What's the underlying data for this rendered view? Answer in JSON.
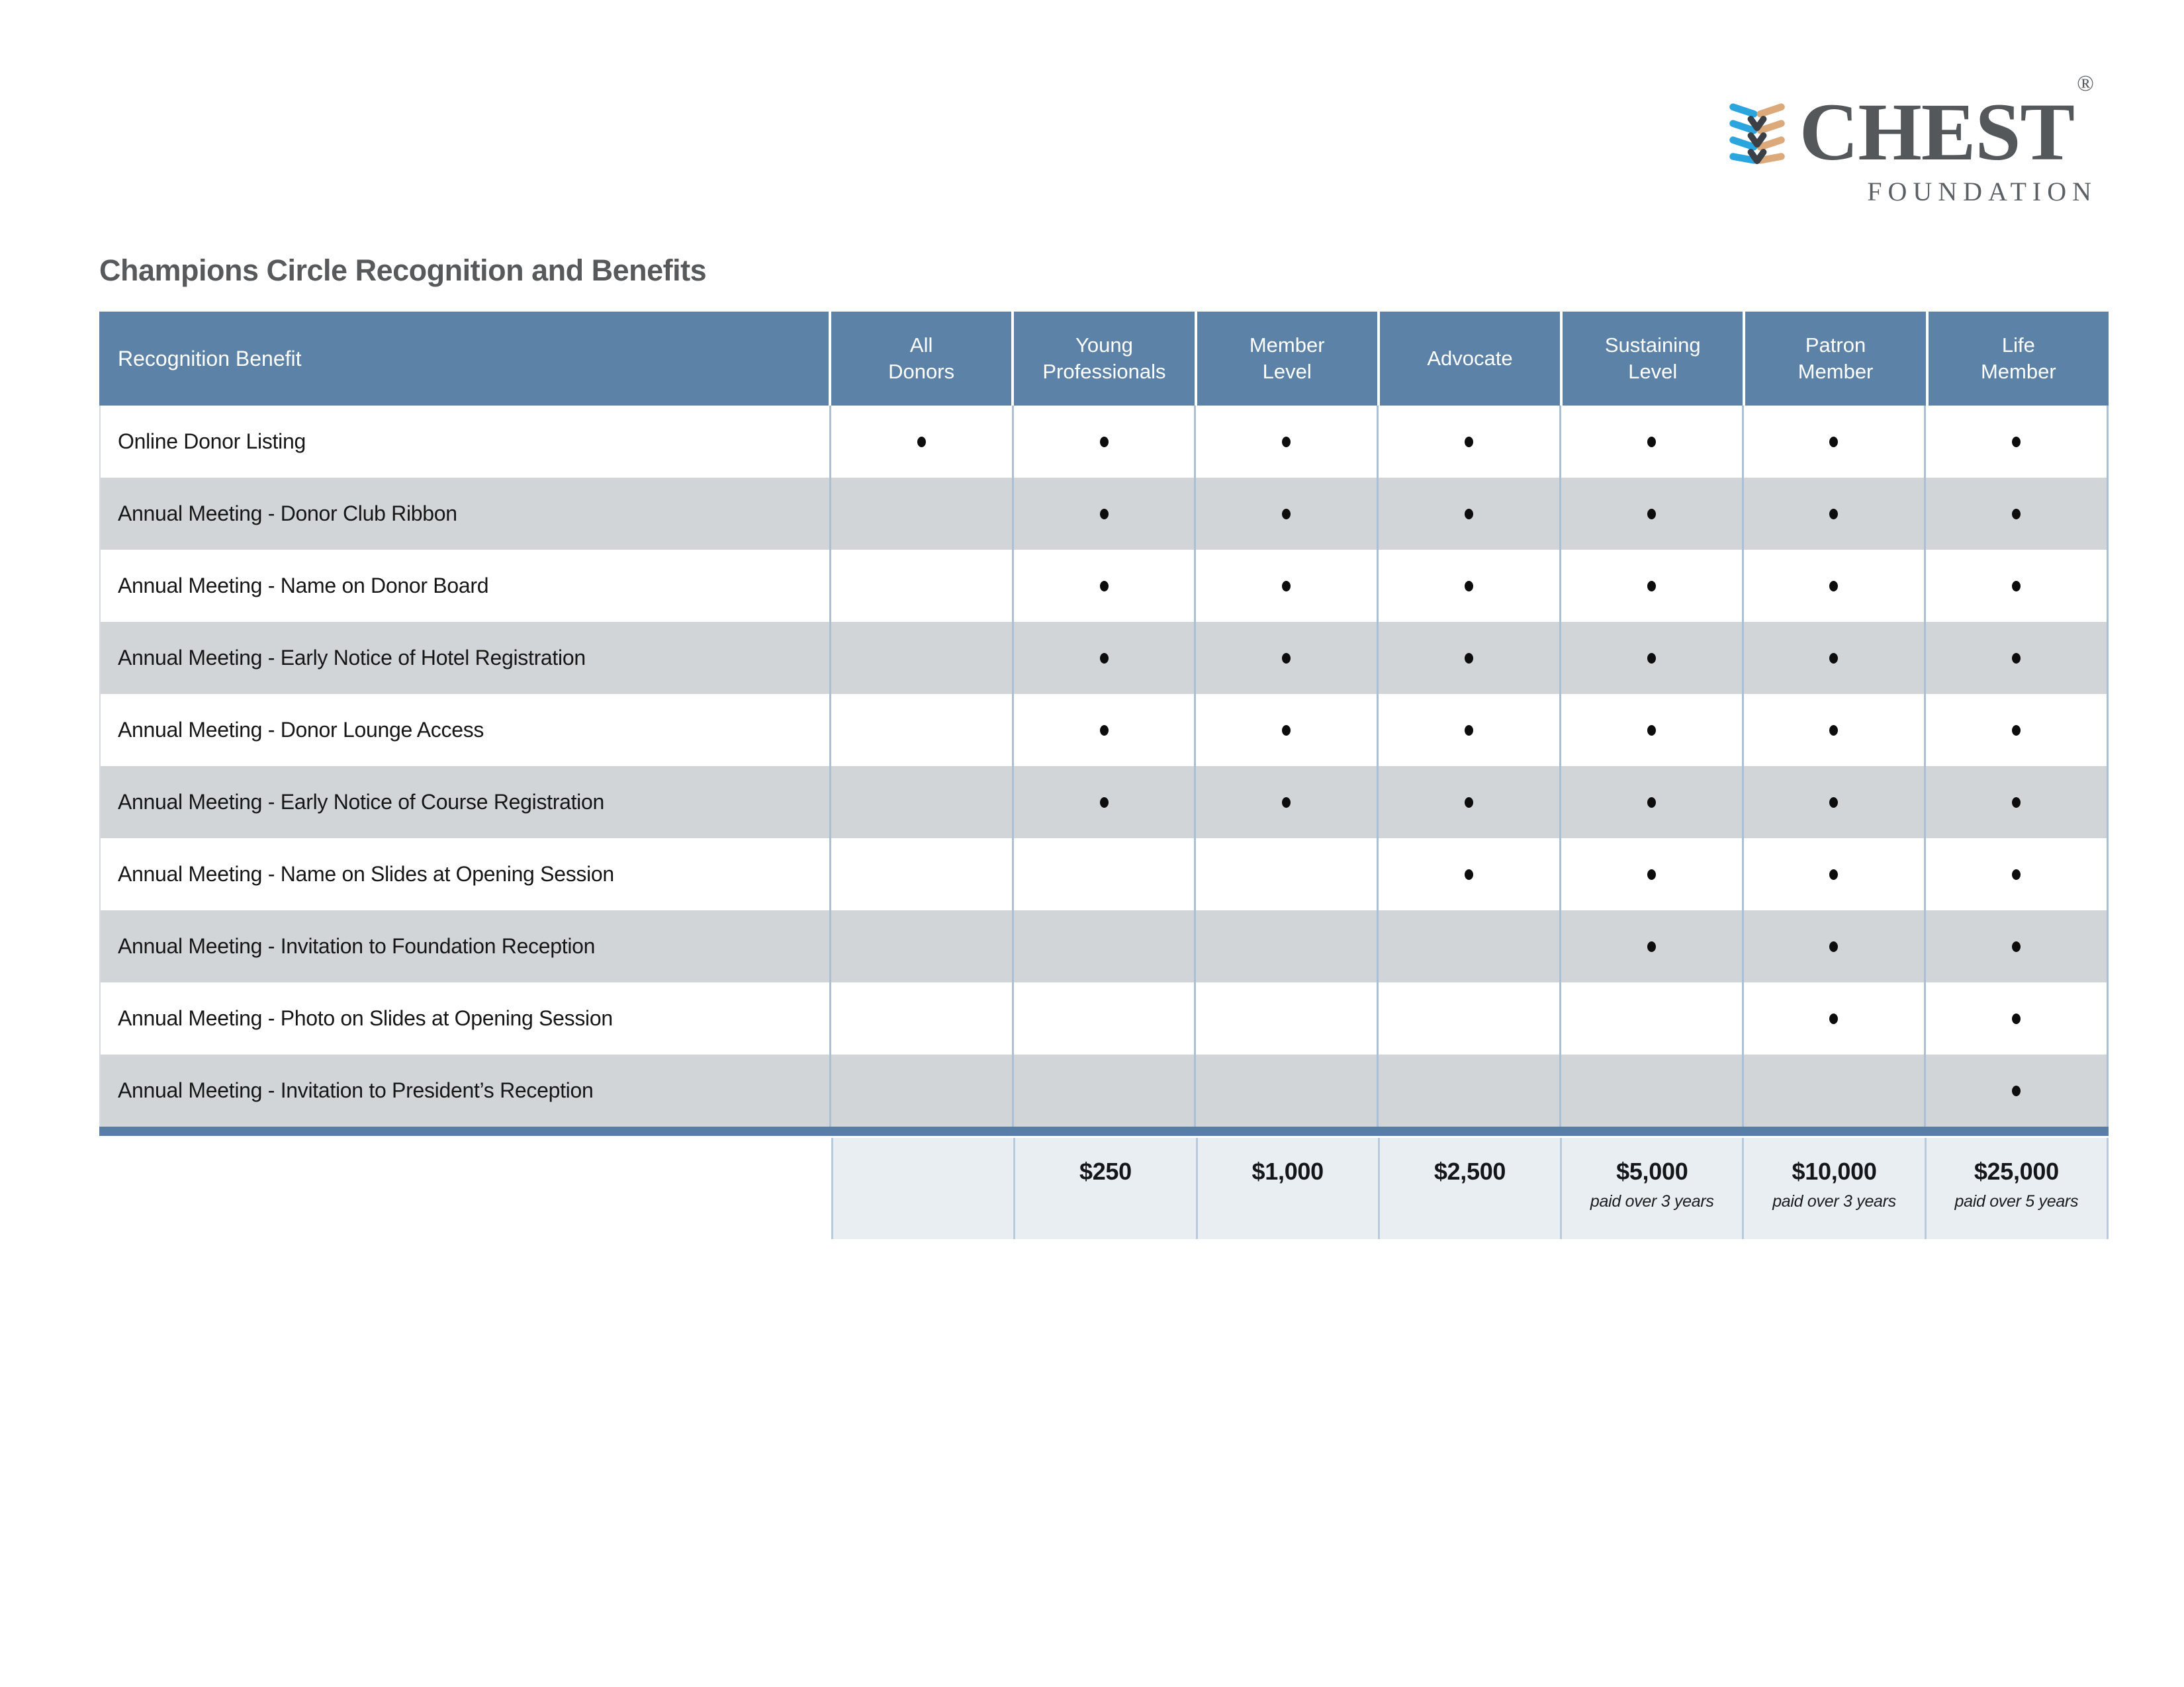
{
  "logo": {
    "brand": "CHEST",
    "registered": "®",
    "subtitle": "FOUNDATION",
    "icon": "chest-spine-ribbons-icon",
    "colors": {
      "text_gray": "#54585b",
      "ribbon_blue": "#2aa5de",
      "ribbon_tan": "#dba97a",
      "ribbon_dark": "#3a4045"
    }
  },
  "title": "Champions Circle Recognition and Benefits",
  "colors": {
    "header_bg": "#5c82a7",
    "row_alt_bg": "#d2d5d8",
    "divider_blue": "#abc0d5",
    "bottom_bar": "#587ea6",
    "price_row_bg": "#e9eef3",
    "title_color": "#58595b",
    "dot_color": "#0d0d0d"
  },
  "table": {
    "benefit_header": "Recognition Benefit",
    "columns": [
      {
        "label": "All\nDonors"
      },
      {
        "label": "Young\nProfessionals"
      },
      {
        "label": "Member\nLevel"
      },
      {
        "label": "Advocate"
      },
      {
        "label": "Sustaining\nLevel"
      },
      {
        "label": "Patron\nMember"
      },
      {
        "label": "Life\nMember"
      }
    ],
    "rows": [
      {
        "label": "Online Donor Listing",
        "dots": [
          true,
          true,
          true,
          true,
          true,
          true,
          true
        ]
      },
      {
        "label": "Annual Meeting - Donor Club Ribbon",
        "dots": [
          false,
          true,
          true,
          true,
          true,
          true,
          true
        ]
      },
      {
        "label": "Annual Meeting - Name on Donor Board",
        "dots": [
          false,
          true,
          true,
          true,
          true,
          true,
          true
        ]
      },
      {
        "label": "Annual Meeting - Early Notice of Hotel Registration",
        "dots": [
          false,
          true,
          true,
          true,
          true,
          true,
          true
        ]
      },
      {
        "label": "Annual Meeting - Donor Lounge Access",
        "dots": [
          false,
          true,
          true,
          true,
          true,
          true,
          true
        ]
      },
      {
        "label": "Annual Meeting  - Early Notice of Course Registration",
        "dots": [
          false,
          true,
          true,
          true,
          true,
          true,
          true
        ]
      },
      {
        "label": "Annual Meeting - Name on Slides at Opening Session",
        "dots": [
          false,
          false,
          false,
          true,
          true,
          true,
          true
        ]
      },
      {
        "label": "Annual Meeting - Invitation to Foundation Reception",
        "dots": [
          false,
          false,
          false,
          false,
          true,
          true,
          true
        ]
      },
      {
        "label": "Annual Meeting - Photo on Slides at Opening Session",
        "dots": [
          false,
          false,
          false,
          false,
          false,
          true,
          true
        ]
      },
      {
        "label": "Annual Meeting - Invitation to President’s Reception",
        "dots": [
          false,
          false,
          false,
          false,
          false,
          false,
          true
        ]
      }
    ],
    "price_row": [
      {
        "amount": "",
        "note": ""
      },
      {
        "amount": "$250",
        "note": ""
      },
      {
        "amount": "$1,000",
        "note": ""
      },
      {
        "amount": "$2,500",
        "note": ""
      },
      {
        "amount": "$5,000",
        "note": "paid over 3 years"
      },
      {
        "amount": "$10,000",
        "note": "paid over 3 years"
      },
      {
        "amount": "$25,000",
        "note": "paid over 5 years"
      }
    ]
  }
}
